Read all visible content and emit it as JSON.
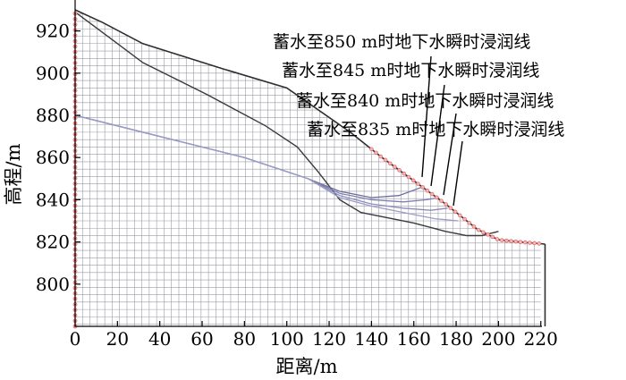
{
  "figure": {
    "x_axis": {
      "title": "距离/m",
      "range": [
        0,
        220
      ],
      "ticks": [
        "0",
        "20",
        "40",
        "60",
        "80",
        "100",
        "120",
        "140",
        "160",
        "180",
        "200",
        "220"
      ]
    },
    "y_axis": {
      "title": "高程/m",
      "range": [
        780,
        930
      ],
      "ticks": [
        "920",
        "900",
        "880",
        "860",
        "840",
        "820",
        "800"
      ]
    },
    "slope_surface": [
      [
        0,
        930
      ],
      [
        13,
        924
      ],
      [
        32,
        914
      ],
      [
        70,
        902
      ],
      [
        100,
        893
      ],
      [
        130,
        872
      ],
      [
        145,
        860
      ],
      [
        160,
        849
      ],
      [
        175,
        838
      ],
      [
        190,
        826
      ],
      [
        200,
        821
      ],
      [
        210,
        820
      ],
      [
        222,
        819
      ]
    ],
    "bedrock_line": [
      [
        0,
        929
      ],
      [
        32,
        905
      ],
      [
        62,
        890
      ],
      [
        90,
        875
      ],
      [
        105,
        865
      ],
      [
        115,
        853
      ],
      [
        125,
        840
      ],
      [
        135,
        834
      ],
      [
        160,
        829
      ],
      [
        175,
        825
      ],
      [
        185,
        823
      ],
      [
        192,
        823
      ],
      [
        200,
        825
      ]
    ],
    "phreatic_lines": [
      {
        "label": "蓄水至850 m时地下水瞬时浸润线",
        "color": "#6e6e9e",
        "points": [
          [
            0,
            880
          ],
          [
            40,
            870
          ],
          [
            80,
            860
          ],
          [
            110,
            850
          ],
          [
            125,
            844
          ],
          [
            140,
            841
          ],
          [
            153,
            842
          ],
          [
            164,
            846
          ]
        ]
      },
      {
        "label": "蓄水至845 m时地下水瞬时浸润线",
        "color": "#7e7eae",
        "points": [
          [
            0,
            880
          ],
          [
            40,
            870
          ],
          [
            80,
            860
          ],
          [
            110,
            850
          ],
          [
            125,
            843
          ],
          [
            140,
            840
          ],
          [
            155,
            839
          ],
          [
            166,
            840
          ],
          [
            172,
            841
          ]
        ]
      },
      {
        "label": "蓄水至840 m时地下水瞬时浸润线",
        "color": "#8c8cbc",
        "points": [
          [
            0,
            880
          ],
          [
            40,
            870
          ],
          [
            80,
            860
          ],
          [
            110,
            850
          ],
          [
            125,
            842
          ],
          [
            140,
            838
          ],
          [
            155,
            836
          ],
          [
            168,
            835
          ],
          [
            176,
            836
          ]
        ]
      },
      {
        "label": "蓄水至835 m时地下水瞬时浸润线",
        "color": "#9b9bc9",
        "points": [
          [
            0,
            880
          ],
          [
            40,
            870
          ],
          [
            80,
            860
          ],
          [
            110,
            850
          ],
          [
            125,
            841
          ],
          [
            140,
            837
          ],
          [
            155,
            834
          ],
          [
            170,
            831
          ],
          [
            181,
            830
          ]
        ]
      }
    ]
  }
}
